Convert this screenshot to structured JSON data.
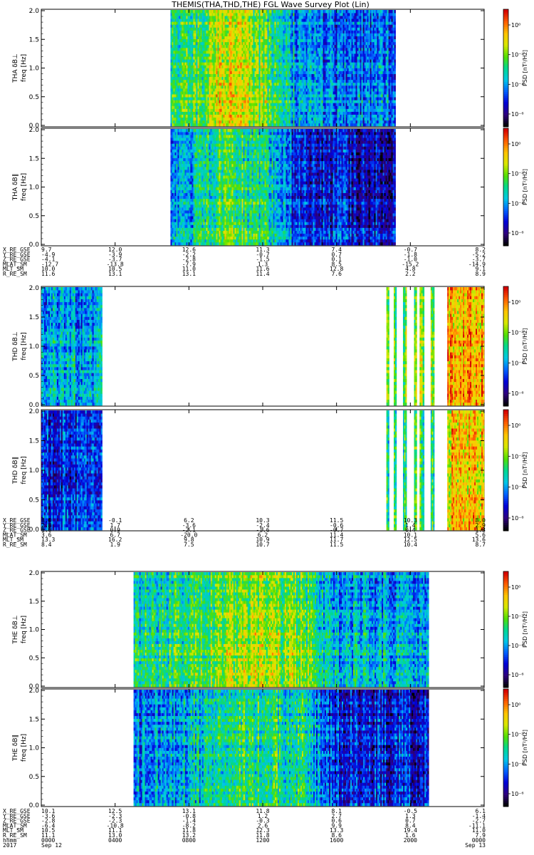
{
  "title": "THEMIS(THA,THD,THE) FGL Wave Survey Plot (Lin)",
  "chart_data": {
    "type": "heatmap",
    "x_range": [
      0,
      24
    ],
    "xlabel_row": "hhmm",
    "date_row": [
      "2017",
      "Sep 12",
      "Sep 13"
    ],
    "x_tick_labels": [
      "0000",
      "0400",
      "0800",
      "1200",
      "1600",
      "2000",
      "0000"
    ],
    "y_range": [
      0,
      2.0
    ],
    "y_ticks": [
      "0.0",
      "0.5",
      "1.0",
      "1.5",
      "2.0"
    ],
    "colorbar_label": "PSD [nT²/Hz]",
    "colormap": [
      "#000000",
      "#30007f",
      "#0000d8",
      "#0062ff",
      "#00c8e6",
      "#00d890",
      "#54e000",
      "#d8e800",
      "#ffc400",
      "#ff5e00",
      "#d40000"
    ],
    "panels": [
      {
        "name": "THA δB⊥",
        "ylabel_top": "THA δB⊥",
        "ylabel_bottom": "freq [Hz]",
        "cbar_ticks": [
          "10⁰",
          "10⁻²",
          "10⁻⁴",
          "10⁻⁶"
        ],
        "data_spans": [
          [
            7.0,
            19.2
          ]
        ],
        "profile": [
          [
            7.0,
            0.55
          ],
          [
            8.8,
            0.6
          ],
          [
            10.0,
            0.78
          ],
          [
            12.0,
            0.62
          ],
          [
            13.0,
            0.52
          ],
          [
            14.0,
            0.36
          ],
          [
            19.2,
            0.32
          ]
        ]
      },
      {
        "name": "THA δB∥",
        "ylabel_top": "THA δB∥",
        "ylabel_bottom": "freq [Hz]",
        "cbar_ticks": [
          "10⁰",
          "10⁻²",
          "10⁻⁴",
          "10⁻⁶"
        ],
        "data_spans": [
          [
            7.0,
            19.2
          ]
        ],
        "profile": [
          [
            7.0,
            0.36
          ],
          [
            8.8,
            0.48
          ],
          [
            10.0,
            0.6
          ],
          [
            12.0,
            0.5
          ],
          [
            13.0,
            0.4
          ],
          [
            14.0,
            0.25
          ],
          [
            19.2,
            0.18
          ]
        ]
      },
      {
        "name": "THD δB⊥",
        "ylabel_top": "THD δB⊥",
        "ylabel_bottom": "freq [Hz]",
        "cbar_ticks": [
          "10⁰",
          "10⁻²",
          "10⁻⁴",
          "10⁻⁶"
        ],
        "data_spans": [
          [
            0.0,
            3.3
          ],
          [
            18.7,
            18.85
          ],
          [
            19.1,
            19.25
          ],
          [
            19.6,
            19.8
          ],
          [
            20.2,
            20.35
          ],
          [
            20.5,
            20.75
          ],
          [
            21.1,
            21.3
          ],
          [
            22.0,
            24.0
          ]
        ],
        "profile": [
          [
            0,
            0.4
          ],
          [
            3.3,
            0.38
          ],
          [
            18.7,
            0.6
          ],
          [
            21.3,
            0.62
          ],
          [
            22.0,
            0.82
          ],
          [
            24.0,
            0.82
          ]
        ]
      },
      {
        "name": "THD δB∥",
        "ylabel_top": "THD δB∥",
        "ylabel_bottom": "freq [Hz]",
        "cbar_ticks": [
          "10⁰",
          "10⁻²",
          "10⁻⁴",
          "10⁻⁶"
        ],
        "data_spans": [
          [
            0.0,
            3.3
          ],
          [
            18.7,
            18.85
          ],
          [
            19.1,
            19.25
          ],
          [
            19.6,
            19.8
          ],
          [
            20.2,
            20.35
          ],
          [
            20.5,
            20.75
          ],
          [
            21.1,
            21.3
          ],
          [
            22.0,
            24.0
          ]
        ],
        "profile": [
          [
            0,
            0.26
          ],
          [
            3.3,
            0.25
          ],
          [
            18.7,
            0.55
          ],
          [
            21.3,
            0.58
          ],
          [
            22.0,
            0.8
          ],
          [
            24.0,
            0.8
          ]
        ]
      },
      {
        "name": "THE δB⊥",
        "ylabel_top": "THE δB⊥",
        "ylabel_bottom": "freq [Hz]",
        "cbar_ticks": [
          "10⁰",
          "10⁻²",
          "10⁻⁴",
          "10⁻⁶"
        ],
        "data_spans": [
          [
            5.0,
            21.0
          ]
        ],
        "profile": [
          [
            5.0,
            0.48
          ],
          [
            9.0,
            0.58
          ],
          [
            11.0,
            0.66
          ],
          [
            14.5,
            0.6
          ],
          [
            15.5,
            0.42
          ],
          [
            21.0,
            0.38
          ]
        ]
      },
      {
        "name": "THE δB∥",
        "ylabel_top": "THE δB∥",
        "ylabel_bottom": "freq [Hz]",
        "cbar_ticks": [
          "10⁰",
          "10⁻²",
          "10⁻⁴",
          "10⁻⁶"
        ],
        "data_spans": [
          [
            5.0,
            21.0
          ]
        ],
        "profile": [
          [
            5.0,
            0.34
          ],
          [
            9.0,
            0.46
          ],
          [
            11.0,
            0.56
          ],
          [
            14.5,
            0.5
          ],
          [
            15.5,
            0.26
          ],
          [
            21.0,
            0.22
          ]
        ]
      }
    ],
    "ephemeris": [
      {
        "labels": [
          "X_RE_GSE",
          "Y_RE_GSE",
          "Z_RE_GSE",
          "MLAT_SM",
          "MLT_SM",
          "R_RE_SM"
        ],
        "columns": [
          [
            "9.7",
            "-4.9",
            "-4.1",
            "-12.7",
            "10.0",
            "11.6"
          ],
          [
            "12.0",
            "-3.9",
            "-3.7",
            "-13.8",
            "10.5",
            "13.1"
          ],
          [
            "12.6",
            "-2.2",
            "-2.8",
            "-7.9",
            "11.0",
            "13.1"
          ],
          [
            "11.3",
            "-0.7",
            "-1.5",
            "1.3",
            "11.6",
            "11.4"
          ],
          [
            "7.4",
            "0.7",
            "0.1",
            "8.5",
            "12.8",
            "7.6"
          ],
          [
            "-0.7",
            "-1.8",
            "-1.0",
            "-15.2",
            "4.8",
            "2.2"
          ],
          [
            "8.2",
            "-5.2",
            "-3.7",
            "-14.9",
            "9.1",
            "8.9"
          ]
        ]
      },
      {
        "labels": [
          "X_RE_GSE",
          "Y_RE_GSE",
          "Z_RE_GSE",
          "MLAT_SM",
          "MLT_SM",
          "R_RE_SM"
        ],
        "columns": [
          [
            "8.0",
            "2.8",
            "1.0",
            "3.6",
            "13.3",
            "8.4"
          ],
          [
            "-0.1",
            "1.7",
            "0.9",
            "6.7",
            "16.2",
            "1.9"
          ],
          [
            "6.2",
            "-3.6",
            "-2.1",
            "-20.0",
            "9.8",
            "7.5"
          ],
          [
            "10.3",
            "-2.4",
            "-1.6",
            "6.2",
            "10.9",
            "10.7"
          ],
          [
            "11.5",
            "-0.6",
            "-0.7",
            "11.4",
            "11.7",
            "11.5"
          ],
          [
            "10.3",
            "1.4",
            "0.4",
            "10.1",
            "12.5",
            "10.4"
          ],
          [
            "8.0",
            "2.9",
            "1.3",
            "5.6",
            "13.6",
            "8.7"
          ]
        ]
      },
      {
        "labels": [
          "X_RE_GSE",
          "Y_RE_GSE",
          "Z_RE_GSE",
          "MLAT_SM",
          "MLT_SM",
          "R_RE_SM"
        ],
        "columns": [
          [
            "10.1",
            "-3.6",
            "-2.8",
            "-6.4",
            "10.5",
            "11.1"
          ],
          [
            "12.5",
            "-2.3",
            "-2.3",
            "-10.8",
            "11.1",
            "13.0"
          ],
          [
            "13.1",
            "-0.8",
            "-1.4",
            "-8.2",
            "11.8",
            "13.2"
          ],
          [
            "11.8",
            "1.2",
            "-0.3",
            "2.6",
            "12.3",
            "11.8"
          ],
          [
            "8.1",
            "2.7",
            "0.6",
            "9.9",
            "13.3",
            "8.6"
          ],
          [
            "-0.5",
            "1.3",
            "0.7",
            "8.4",
            "19.4",
            "1.6"
          ],
          [
            "6.1",
            "-1.4",
            "-2.7",
            "-11.1",
            "11.0",
            "7.9"
          ]
        ]
      }
    ]
  }
}
